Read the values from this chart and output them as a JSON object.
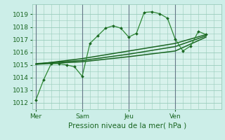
{
  "bg_color": "#cceee8",
  "plot_bg": "#d8f2ec",
  "grid_color": "#99ccbb",
  "line_dark": "#1a6622",
  "line_mid": "#2e8835",
  "ylim": [
    1011.5,
    1019.8
  ],
  "yticks": [
    1012,
    1013,
    1014,
    1015,
    1016,
    1017,
    1018,
    1019
  ],
  "xlabel": "Pression niveau de la mer( hPa )",
  "xtick_labels": [
    "Mer",
    "Sam",
    "Jeu",
    "Ven"
  ],
  "xtick_pos": [
    0,
    3,
    6,
    9
  ],
  "xlim": [
    -0.2,
    11.4
  ],
  "main_x": [
    0,
    0.5,
    1.0,
    1.5,
    2.0,
    2.5,
    3.0,
    3.5,
    4.0,
    4.5,
    5.0,
    5.5,
    6.0,
    6.5,
    7.0,
    7.5,
    8.0,
    8.5,
    9.0,
    9.5,
    10.0,
    10.5,
    11.0
  ],
  "main_y": [
    1012.2,
    1013.8,
    1015.1,
    1015.1,
    1015.0,
    1014.85,
    1014.1,
    1016.7,
    1017.3,
    1017.9,
    1018.1,
    1017.9,
    1017.2,
    1017.5,
    1019.15,
    1019.2,
    1019.05,
    1018.7,
    1017.05,
    1016.1,
    1016.5,
    1017.65,
    1017.4
  ],
  "trend1_x": [
    0.0,
    3.0,
    6.0,
    9.0,
    11.0
  ],
  "trend1_y": [
    1015.05,
    1015.25,
    1015.65,
    1016.1,
    1017.2
  ],
  "trend2_x": [
    0.0,
    3.0,
    6.0,
    9.0,
    11.0
  ],
  "trend2_y": [
    1015.1,
    1015.35,
    1015.85,
    1016.45,
    1017.3
  ],
  "trend3_x": [
    0.0,
    3.0,
    6.0,
    9.0,
    11.0
  ],
  "trend3_y": [
    1015.05,
    1015.5,
    1016.1,
    1016.7,
    1017.4
  ],
  "vlines": [
    0,
    3,
    6,
    9
  ],
  "vline_color": "#667788"
}
